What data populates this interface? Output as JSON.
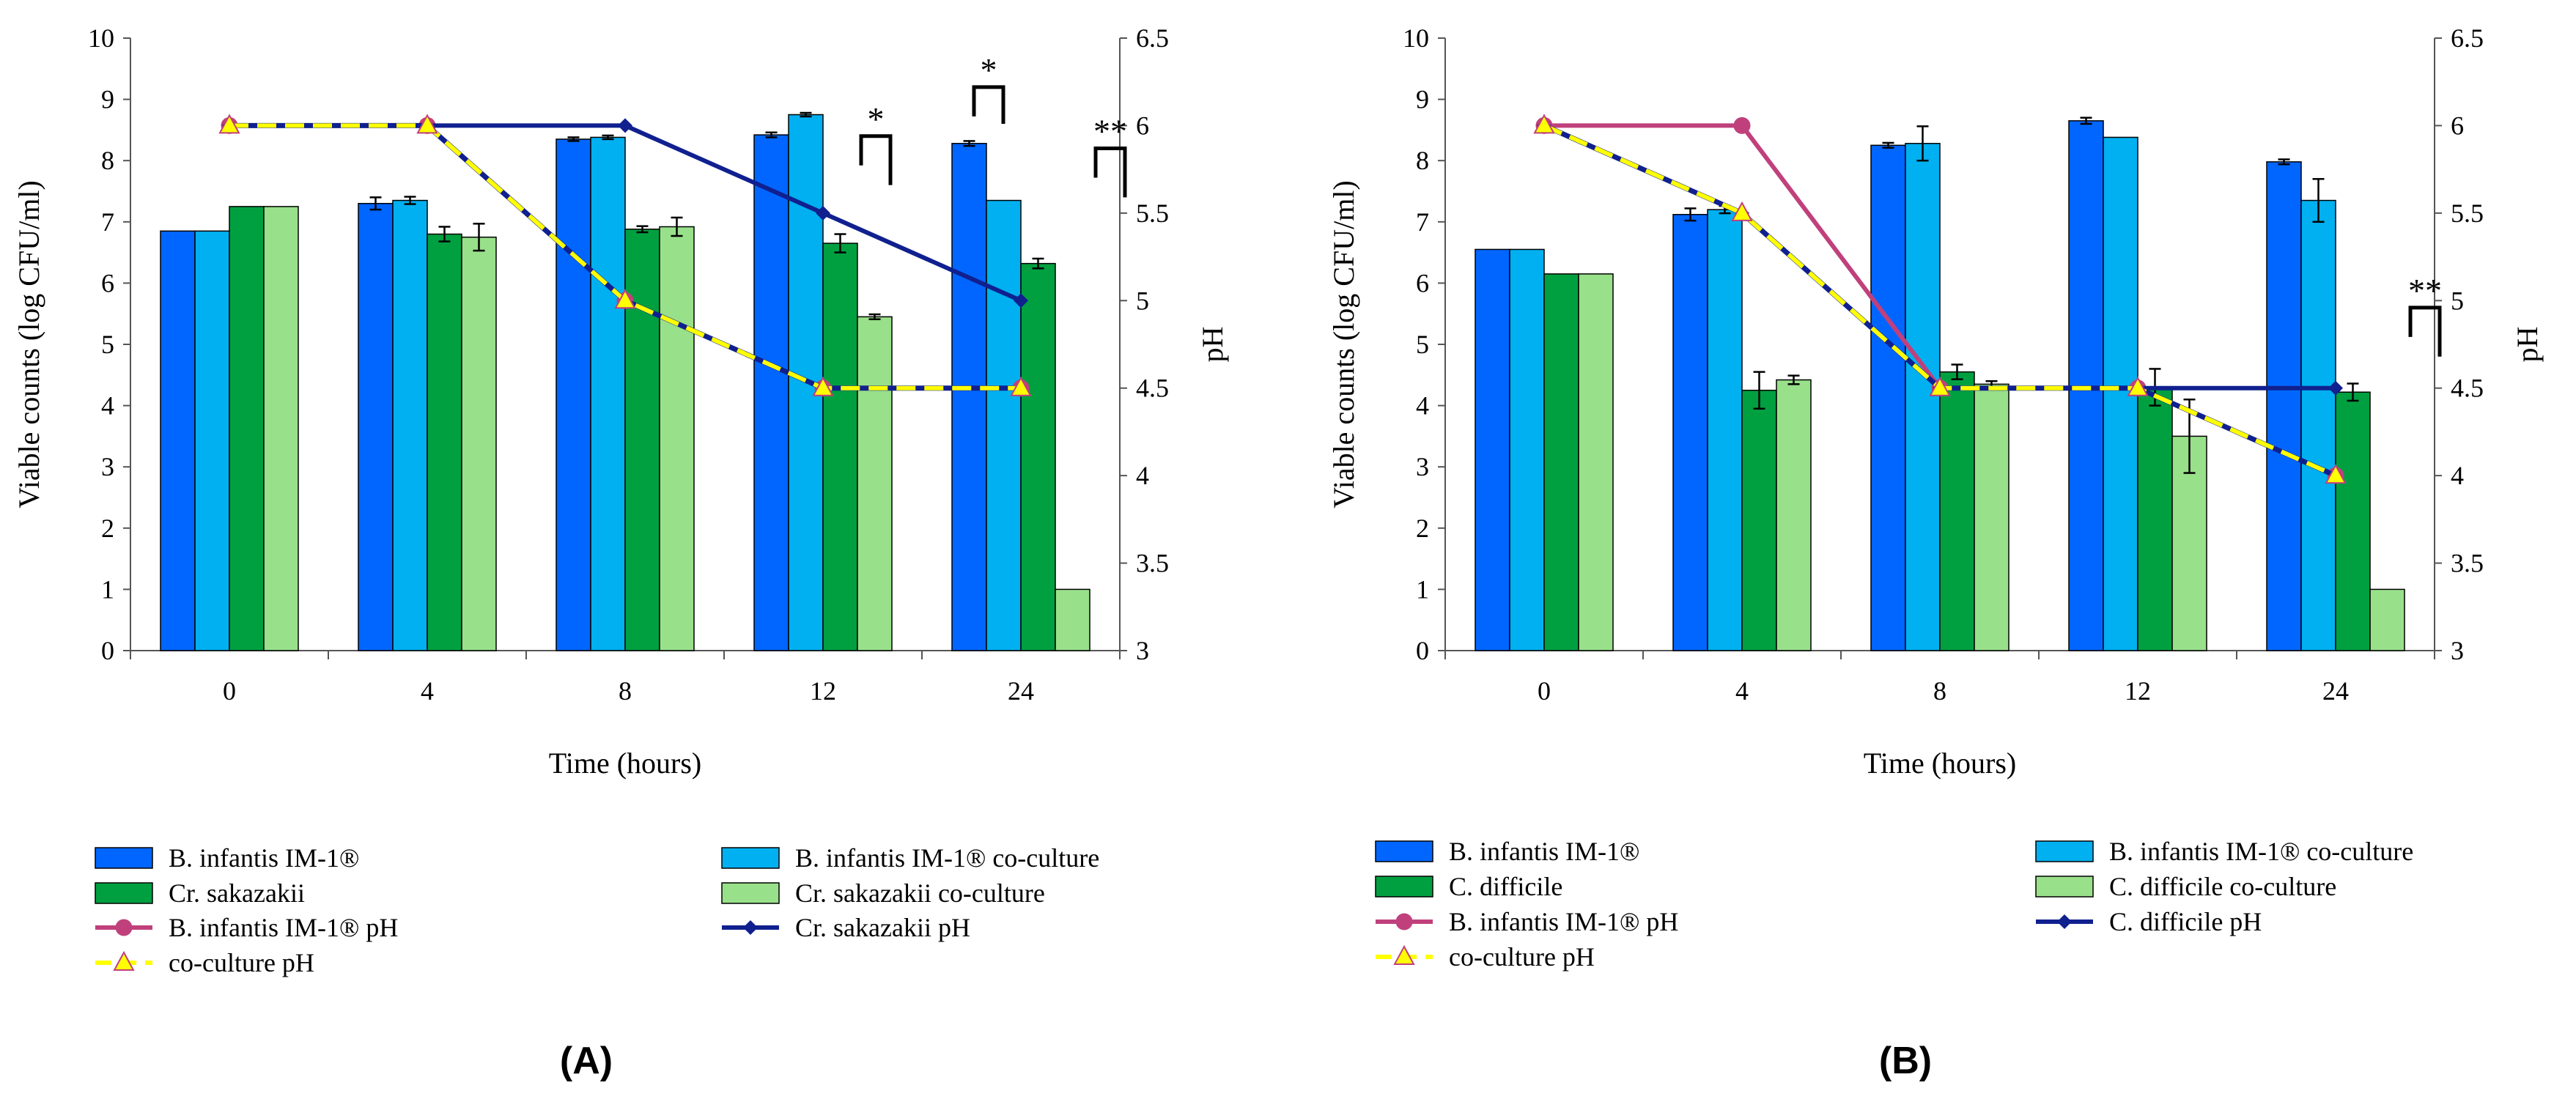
{
  "panels": [
    {
      "id": "A",
      "caption": "(A)",
      "chart_data": {
        "type": "bar",
        "categories": [
          "0",
          "4",
          "8",
          "12",
          "24"
        ],
        "xlabel": "Time (hours)",
        "ylabel": "Viable counts (log CFU/ml)",
        "y2label": "pH",
        "ylim": [
          0,
          10
        ],
        "y2lim": [
          3,
          6.5
        ],
        "yticks": [
          "0",
          "1",
          "2",
          "3",
          "4",
          "5",
          "6",
          "7",
          "8",
          "9",
          "10"
        ],
        "y2ticks": [
          "3",
          "3.5",
          "4",
          "4.5",
          "5",
          "5.5",
          "6",
          "6.5"
        ],
        "bar_series": [
          {
            "name": "B. infantis IM-1®",
            "color": "#0066FF",
            "values": [
              6.85,
              7.3,
              8.35,
              8.42,
              8.28
            ],
            "errors": [
              0,
              0.1,
              0.03,
              0.04,
              0.04
            ]
          },
          {
            "name": "B. infantis IM-1®  co-culture",
            "color": "#00B0F0",
            "values": [
              6.85,
              7.35,
              8.38,
              8.75,
              7.35
            ],
            "errors": [
              0,
              0.06,
              0.03,
              0.03,
              0
            ]
          },
          {
            "name": "Cr. sakazakii",
            "color": "#00A040",
            "values": [
              7.25,
              6.8,
              6.88,
              6.65,
              6.32
            ],
            "errors": [
              0,
              0.12,
              0.05,
              0.15,
              0.08
            ]
          },
          {
            "name": "Cr. sakazakii co-culture",
            "color": "#99E08A",
            "values": [
              7.25,
              6.75,
              6.92,
              5.45,
              1.0
            ],
            "errors": [
              0,
              0.22,
              0.15,
              0.04,
              0
            ]
          }
        ],
        "line_series": [
          {
            "name": "B. infantis IM-1® pH",
            "color": "#C0407C",
            "marker": "circle",
            "dashed": false,
            "values": [
              6.0,
              6.0,
              5.0,
              4.5,
              4.5
            ]
          },
          {
            "name": "Cr. sakazakii pH",
            "color": "#10208F",
            "marker": "diamond",
            "dashed": false,
            "values": [
              6.0,
              6.0,
              6.0,
              5.5,
              5.0
            ]
          },
          {
            "name": "co-culture pH",
            "color": "#FFFF00",
            "marker": "triangle",
            "dashed": true,
            "values": [
              6.0,
              6.0,
              5.0,
              4.5,
              4.5
            ]
          }
        ],
        "significance": [
          {
            "category": "12",
            "label": "*",
            "high": 8.4,
            "low": 7.6
          },
          {
            "category": "24",
            "label": "*",
            "high": 9.2,
            "low": 8.6
          },
          {
            "category": "24",
            "label": "**",
            "high": 8.2,
            "low": 7.4,
            "outside": true
          }
        ]
      }
    },
    {
      "id": "B",
      "caption": "(B)",
      "chart_data": {
        "type": "bar",
        "categories": [
          "0",
          "4",
          "8",
          "12",
          "24"
        ],
        "xlabel": "Time (hours)",
        "ylabel": "Viable counts (log CFU/ml)",
        "y2label": "pH",
        "ylim": [
          0,
          10
        ],
        "y2lim": [
          3,
          6.5
        ],
        "yticks": [
          "0",
          "1",
          "2",
          "3",
          "4",
          "5",
          "6",
          "7",
          "8",
          "9",
          "10"
        ],
        "y2ticks": [
          "3",
          "3.5",
          "4",
          "4.5",
          "5",
          "5.5",
          "6",
          "6.5"
        ],
        "bar_series": [
          {
            "name": "B. infantis IM-1®",
            "color": "#0066FF",
            "values": [
              6.55,
              7.12,
              8.25,
              8.65,
              7.98
            ],
            "errors": [
              0,
              0.1,
              0.04,
              0.05,
              0.04
            ]
          },
          {
            "name": "B. infantis IM-1®  co-culture",
            "color": "#00B0F0",
            "values": [
              6.55,
              7.2,
              8.28,
              8.38,
              7.35
            ],
            "errors": [
              0,
              0.06,
              0.28,
              0,
              0.35
            ]
          },
          {
            "name": "C. difficile",
            "color": "#00A040",
            "values": [
              6.15,
              4.25,
              4.55,
              4.3,
              4.22
            ],
            "errors": [
              0,
              0.3,
              0.12,
              0.3,
              0.14
            ]
          },
          {
            "name": "C. difficile co-culture",
            "color": "#99E08A",
            "values": [
              6.15,
              4.42,
              4.35,
              3.5,
              1.0
            ],
            "errors": [
              0,
              0.07,
              0.05,
              0.6,
              0
            ]
          }
        ],
        "line_series": [
          {
            "name": "B. infantis IM-1®  pH",
            "color": "#C0407C",
            "marker": "circle",
            "dashed": false,
            "values": [
              6.0,
              6.0,
              4.5,
              4.5,
              4.0
            ]
          },
          {
            "name": "C. difficile pH",
            "color": "#10208F",
            "marker": "diamond",
            "dashed": false,
            "values": [
              6.0,
              5.5,
              4.5,
              4.5,
              4.5
            ]
          },
          {
            "name": "co-culture pH",
            "color": "#FFFF00",
            "marker": "triangle",
            "dashed": true,
            "values": [
              6.0,
              5.5,
              4.5,
              4.5,
              4.0
            ]
          }
        ],
        "significance": [
          {
            "category": "24",
            "label": "**",
            "high": 5.6,
            "low": 4.8,
            "outside": true
          }
        ]
      }
    }
  ]
}
